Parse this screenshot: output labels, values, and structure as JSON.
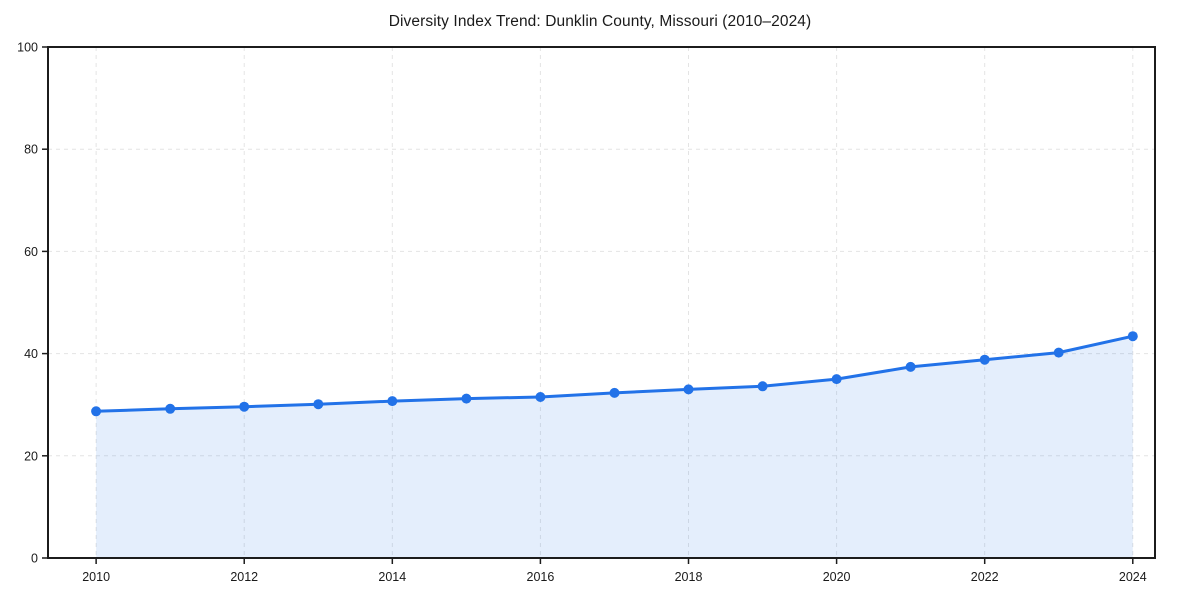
{
  "chart_data": {
    "type": "line",
    "title": "Diversity Index Trend: Dunklin County, Missouri (2010–2024)",
    "xlabel": "",
    "ylabel": "",
    "x": [
      2010,
      2011,
      2012,
      2013,
      2014,
      2015,
      2016,
      2017,
      2018,
      2019,
      2020,
      2021,
      2022,
      2023,
      2024
    ],
    "series": [
      {
        "name": "Diversity Index",
        "values": [
          28.7,
          29.2,
          29.6,
          30.1,
          30.7,
          31.2,
          31.5,
          32.3,
          33.0,
          33.6,
          35.0,
          37.4,
          38.8,
          40.2,
          43.4
        ]
      }
    ],
    "x_ticks": [
      2010,
      2012,
      2014,
      2016,
      2018,
      2020,
      2022,
      2024
    ],
    "y_ticks": [
      0,
      20,
      40,
      60,
      80,
      100
    ],
    "x_range": [
      2009.35,
      2024.3
    ],
    "y_range": [
      0,
      100
    ],
    "grid": true,
    "grid_style": "dashed",
    "legend": "none",
    "marker": "circle",
    "area_fill": true,
    "colors": {
      "line": "#2272E8",
      "marker": "#2272E8",
      "area": "#2272E8",
      "area_opacity": "0.12",
      "grid": "#E4E4E4",
      "frame": "#1C1C1C",
      "tick_text": "#1A1A1A",
      "background": "#FFFFFF"
    }
  }
}
